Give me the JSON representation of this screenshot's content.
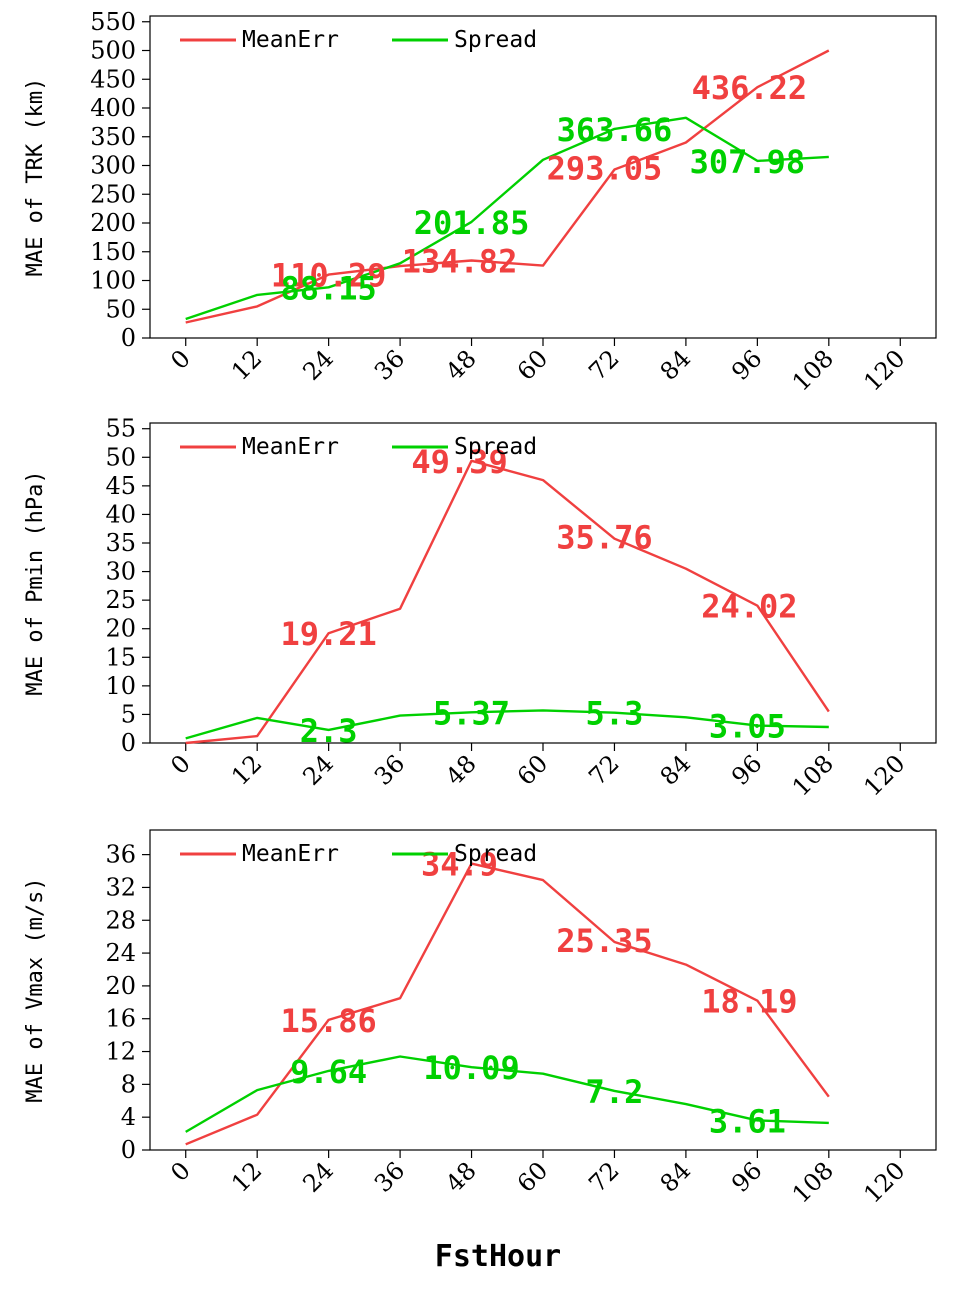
{
  "colors": {
    "mean_err": "#f04040",
    "spread": "#00d000",
    "axis": "#000000"
  },
  "shared_xlabel": "FstHour",
  "chart_data": [
    {
      "type": "line",
      "ylabel": "MAE of TRK (km)",
      "x": [
        0,
        12,
        24,
        36,
        48,
        60,
        72,
        84,
        96,
        108
      ],
      "x_ticks": [
        "0",
        "12",
        "24",
        "36",
        "48",
        "60",
        "72",
        "84",
        "96",
        "108",
        "120"
      ],
      "xlim": [
        -6,
        126
      ],
      "ylim": [
        0,
        560
      ],
      "y_ticks": [
        0,
        50,
        100,
        150,
        200,
        250,
        300,
        350,
        400,
        450,
        500,
        550
      ],
      "legend": "top-left",
      "grid": false,
      "series": [
        {
          "name": "MeanErr",
          "color": "#f04040",
          "values": [
            27,
            55,
            110.29,
            125,
            134.82,
            126,
            293.05,
            340,
            436.22,
            500
          ]
        },
        {
          "name": "Spread",
          "color": "#00d000",
          "values": [
            33,
            75,
            88.15,
            130,
            201.85,
            310,
            363.66,
            383,
            307.98,
            315
          ]
        }
      ],
      "data_labels": [
        {
          "series": "MeanErr",
          "text": "110.29",
          "x": 24,
          "y": 110.29
        },
        {
          "series": "MeanErr",
          "text": "134.82",
          "x": 48,
          "y": 134.82
        },
        {
          "series": "MeanErr",
          "text": "293.05",
          "x": 72,
          "y": 293.05
        },
        {
          "series": "MeanErr",
          "text": "436.22",
          "x": 96,
          "y": 436.22
        },
        {
          "series": "Spread",
          "text": "88.15",
          "x": 24,
          "y": 88.15
        },
        {
          "series": "Spread",
          "text": "201.85",
          "x": 48,
          "y": 201.85
        },
        {
          "series": "Spread",
          "text": "363.66",
          "x": 72,
          "y": 363.66
        },
        {
          "series": "Spread",
          "text": "307.98",
          "x": 96,
          "y": 307.98
        }
      ]
    },
    {
      "type": "line",
      "ylabel": "MAE of Pmin (hPa)",
      "x": [
        0,
        12,
        24,
        36,
        48,
        60,
        72,
        84,
        96,
        108
      ],
      "x_ticks": [
        "0",
        "12",
        "24",
        "36",
        "48",
        "60",
        "72",
        "84",
        "96",
        "108",
        "120"
      ],
      "xlim": [
        -6,
        126
      ],
      "ylim": [
        0,
        56
      ],
      "y_ticks": [
        0,
        5,
        10,
        15,
        20,
        25,
        30,
        35,
        40,
        45,
        50,
        55
      ],
      "legend": "top-left",
      "grid": false,
      "series": [
        {
          "name": "MeanErr",
          "color": "#f04040",
          "values": [
            0,
            1.2,
            19.21,
            23.5,
            49.39,
            46,
            35.76,
            30.5,
            24.02,
            5.5
          ]
        },
        {
          "name": "Spread",
          "color": "#00d000",
          "values": [
            0.8,
            4.4,
            2.3,
            4.8,
            5.37,
            5.7,
            5.3,
            4.5,
            3.05,
            2.8
          ]
        }
      ],
      "data_labels": [
        {
          "series": "MeanErr",
          "text": "19.21",
          "x": 24,
          "y": 19.21
        },
        {
          "series": "MeanErr",
          "text": "49.39",
          "x": 48,
          "y": 49.39
        },
        {
          "series": "MeanErr",
          "text": "35.76",
          "x": 72,
          "y": 35.76
        },
        {
          "series": "MeanErr",
          "text": "24.02",
          "x": 96,
          "y": 24.02
        },
        {
          "series": "Spread",
          "text": "2.3",
          "x": 24,
          "y": 2.3
        },
        {
          "series": "Spread",
          "text": "5.37",
          "x": 48,
          "y": 5.37
        },
        {
          "series": "Spread",
          "text": "5.3",
          "x": 72,
          "y": 5.3
        },
        {
          "series": "Spread",
          "text": "3.05",
          "x": 96,
          "y": 3.05
        }
      ]
    },
    {
      "type": "line",
      "ylabel": "MAE of Vmax (m/s)",
      "x": [
        0,
        12,
        24,
        36,
        48,
        60,
        72,
        84,
        96,
        108
      ],
      "x_ticks": [
        "0",
        "12",
        "24",
        "36",
        "48",
        "60",
        "72",
        "84",
        "96",
        "108",
        "120"
      ],
      "xlim": [
        -6,
        126
      ],
      "ylim": [
        0,
        39
      ],
      "y_ticks": [
        0,
        4,
        8,
        12,
        16,
        20,
        24,
        28,
        32,
        36
      ],
      "legend": "top-left",
      "grid": false,
      "series": [
        {
          "name": "MeanErr",
          "color": "#f04040",
          "values": [
            0.7,
            4.3,
            15.86,
            18.5,
            34.9,
            32.9,
            25.35,
            22.6,
            18.19,
            6.5
          ]
        },
        {
          "name": "Spread",
          "color": "#00d000",
          "values": [
            2.2,
            7.3,
            9.64,
            11.4,
            10.09,
            9.3,
            7.2,
            5.6,
            3.61,
            3.3
          ]
        }
      ],
      "data_labels": [
        {
          "series": "MeanErr",
          "text": "15.86",
          "x": 24,
          "y": 15.86
        },
        {
          "series": "MeanErr",
          "text": "34.9",
          "x": 48,
          "y": 34.9
        },
        {
          "series": "MeanErr",
          "text": "25.35",
          "x": 72,
          "y": 25.35
        },
        {
          "series": "MeanErr",
          "text": "18.19",
          "x": 96,
          "y": 18.19
        },
        {
          "series": "Spread",
          "text": "9.64",
          "x": 24,
          "y": 9.64
        },
        {
          "series": "Spread",
          "text": "10.09",
          "x": 48,
          "y": 10.09
        },
        {
          "series": "Spread",
          "text": "7.2",
          "x": 72,
          "y": 7.2
        },
        {
          "series": "Spread",
          "text": "3.61",
          "x": 96,
          "y": 3.61
        }
      ]
    }
  ]
}
